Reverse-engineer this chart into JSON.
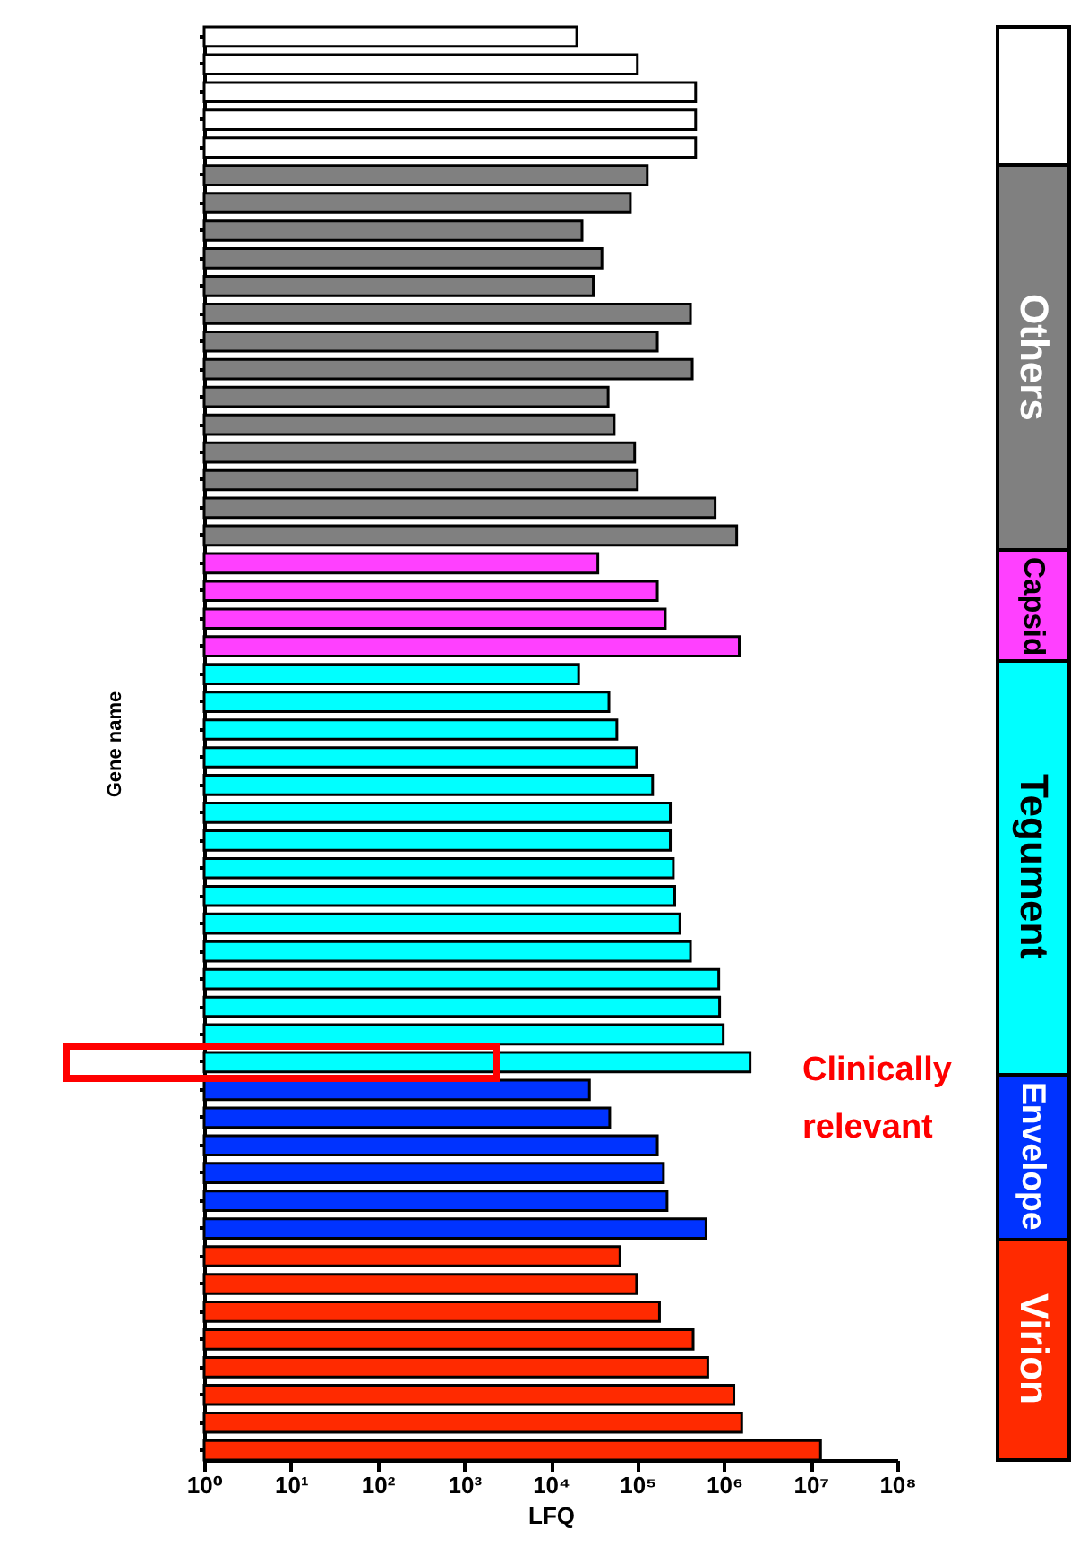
{
  "chart_data": {
    "type": "bar",
    "orientation": "horizontal",
    "log": "x",
    "xlabel": "LFQ",
    "ylabel": "Gene name",
    "categories": [
      null,
      null,
      null,
      null,
      null,
      null,
      null,
      null,
      null,
      null,
      null,
      null,
      null,
      null,
      null,
      null,
      null,
      null,
      null,
      null,
      null,
      null,
      null,
      null,
      null,
      null,
      null,
      null,
      null,
      null,
      null,
      null,
      null,
      null,
      null,
      null,
      null,
      null,
      null,
      null,
      null,
      null,
      null,
      null,
      null,
      null,
      null,
      null,
      null,
      null,
      null,
      null
    ],
    "xlim": [
      1,
      100000000
    ],
    "xticks": [
      {
        "value": 1,
        "label": "10⁰"
      },
      {
        "value": 10,
        "label": "10¹"
      },
      {
        "value": 100,
        "label": "10²"
      },
      {
        "value": 1000,
        "label": "10³"
      },
      {
        "value": 10000,
        "label": "10⁴"
      },
      {
        "value": 100000,
        "label": "10⁵"
      },
      {
        "value": 1000000,
        "label": "10⁶"
      },
      {
        "value": 10000000,
        "label": "10⁷"
      },
      {
        "value": 100000000,
        "label": "10⁸"
      }
    ],
    "legend": "right",
    "annotations": [
      "Clinically relevant"
    ],
    "series": [
      {
        "color": "#ffffff",
        "values": [
          20000,
          100000,
          470000,
          470000,
          470000,
          null,
          null,
          null,
          null,
          null,
          null,
          null,
          null,
          null,
          null,
          null,
          null,
          null,
          null,
          null,
          null,
          null,
          null,
          null,
          null,
          null,
          null,
          null,
          null,
          null,
          null,
          null,
          null,
          null,
          null,
          null,
          null,
          null,
          null,
          null,
          null,
          null,
          null,
          null,
          null,
          null,
          null,
          null,
          null,
          null,
          null,
          null
        ]
      },
      {
        "name": "Others",
        "color": "#808080",
        "values": [
          null,
          null,
          null,
          null,
          null,
          130000,
          83000,
          23000,
          39000,
          31000,
          410000,
          170000,
          430000,
          46000,
          54000,
          93000,
          100000,
          790000,
          1400000,
          null,
          null,
          null,
          null,
          null,
          null,
          null,
          null,
          null,
          null,
          null,
          null,
          null,
          null,
          null,
          null,
          null,
          null,
          null,
          null,
          null,
          null,
          null,
          null,
          null,
          null,
          null,
          null,
          null,
          null,
          null,
          null,
          null
        ]
      },
      {
        "name": "Capsid",
        "color": "#ff40ff",
        "values": [
          null,
          null,
          null,
          null,
          null,
          null,
          null,
          null,
          null,
          null,
          null,
          null,
          null,
          null,
          null,
          null,
          null,
          null,
          null,
          35000,
          170000,
          210000,
          1500000,
          null,
          null,
          null,
          null,
          null,
          null,
          null,
          null,
          null,
          null,
          null,
          null,
          null,
          null,
          null,
          null,
          null,
          null,
          null,
          null,
          null,
          null,
          null,
          null,
          null,
          null,
          null,
          null,
          null
        ]
      },
      {
        "name": "Tegument",
        "color": "#00ffff",
        "values": [
          null,
          null,
          null,
          null,
          null,
          null,
          null,
          null,
          null,
          null,
          null,
          null,
          null,
          null,
          null,
          null,
          null,
          null,
          null,
          null,
          null,
          null,
          null,
          21000,
          47000,
          58000,
          98000,
          150000,
          240000,
          240000,
          260000,
          270000,
          310000,
          410000,
          870000,
          890000,
          980000,
          2000000,
          null,
          null,
          null,
          null,
          null,
          null,
          null,
          null,
          null,
          null,
          null,
          null,
          null,
          null
        ]
      },
      {
        "name": "Envelope",
        "color": "#0033ff",
        "values": [
          null,
          null,
          null,
          null,
          null,
          null,
          null,
          null,
          null,
          null,
          null,
          null,
          null,
          null,
          null,
          null,
          null,
          null,
          null,
          null,
          null,
          null,
          null,
          null,
          null,
          null,
          null,
          null,
          null,
          null,
          null,
          null,
          null,
          null,
          null,
          null,
          null,
          null,
          28000,
          48000,
          170000,
          200000,
          220000,
          620000,
          null,
          null,
          null,
          null,
          null,
          null,
          null,
          null
        ]
      },
      {
        "name": "Virion",
        "color": "#ff2a00",
        "values": [
          null,
          null,
          null,
          null,
          null,
          null,
          null,
          null,
          null,
          null,
          null,
          null,
          null,
          null,
          null,
          null,
          null,
          null,
          null,
          null,
          null,
          null,
          null,
          null,
          null,
          null,
          null,
          null,
          null,
          null,
          null,
          null,
          null,
          null,
          null,
          null,
          null,
          null,
          null,
          null,
          null,
          null,
          null,
          null,
          63000,
          98000,
          180000,
          440000,
          650000,
          1300000,
          1600000,
          13000000
        ]
      }
    ]
  }
}
